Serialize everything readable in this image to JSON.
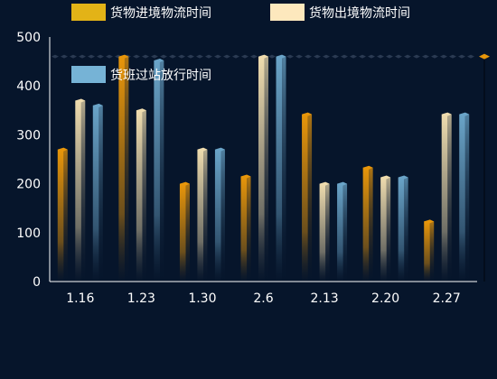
{
  "colors": {
    "background": "#06152b",
    "axis": "#ffffff",
    "guide_line": "#2a3a52"
  },
  "chart_data": {
    "type": "bar",
    "categories": [
      "1.16",
      "1.23",
      "1.30",
      "2.6",
      "2.13",
      "2.20",
      "2.27"
    ],
    "ylim": [
      0,
      500
    ],
    "yticks": [
      "0",
      "100",
      "200",
      "300",
      "400",
      "500"
    ],
    "grid": false,
    "legend_placement": "top",
    "series": [
      {
        "name": "货物进境物流时间",
        "values": [
          270,
          460,
          200,
          215,
          342,
          233,
          123
        ],
        "color_top": "#e8960a",
        "color_bottom": "#06152b",
        "legend_color": "#e3b317"
      },
      {
        "name": "货物出境物流时间",
        "values": [
          370,
          350,
          270,
          460,
          200,
          213,
          342
        ],
        "color_top": "#efdcae",
        "color_bottom": "#06152b",
        "legend_color": "#fde8bd"
      },
      {
        "name": "货班过站放行时间",
        "values": [
          360,
          452,
          270,
          460,
          200,
          213,
          342
        ],
        "color_top": "#6aa4c8",
        "color_bottom": "#06152b",
        "legend_color": "#76b3d6"
      }
    ],
    "reference_line": {
      "value": 460,
      "marker_color": "#e8960a"
    }
  }
}
